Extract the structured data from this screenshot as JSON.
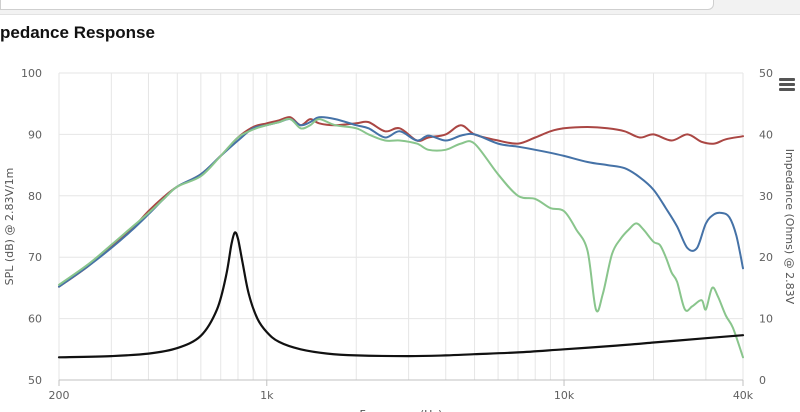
{
  "browser": {},
  "toolbar": {
    "menu_icon": "hamburger-menu-icon"
  },
  "chart_data": {
    "type": "line",
    "title": "pedance Response",
    "xlabel": "Frequency (Hz)",
    "ylabel_left": "SPL (dB) @ 2.83V/1m",
    "ylabel_right": "Impedance (Ohms) @ 2.83V",
    "x_scale": "log",
    "xlim": [
      200,
      40000
    ],
    "ylim_left": [
      50,
      100
    ],
    "ylim_right": [
      0,
      50
    ],
    "x_ticks": [
      {
        "value": 200,
        "label": "200"
      },
      {
        "value": 1000,
        "label": "1k"
      },
      {
        "value": 10000,
        "label": "10k"
      },
      {
        "value": 40000,
        "label": "40k"
      }
    ],
    "y_ticks_left": [
      "50",
      "60",
      "70",
      "80",
      "90",
      "100"
    ],
    "y_ticks_right": [
      "0",
      "10",
      "20",
      "30",
      "40",
      "50"
    ],
    "grid": true,
    "colors": {
      "grid": "#e6e6e6",
      "axis": "#c0c0c0"
    },
    "series": [
      {
        "color": "#aa4643",
        "axis": "left",
        "points": [
          [
            200,
            65.2
          ],
          [
            250,
            68.5
          ],
          [
            300,
            71.8
          ],
          [
            350,
            74.5
          ],
          [
            400,
            77.5
          ],
          [
            450,
            79.8
          ],
          [
            500,
            81.5
          ],
          [
            600,
            83.5
          ],
          [
            700,
            86.5
          ],
          [
            800,
            89.5
          ],
          [
            900,
            91.2
          ],
          [
            1000,
            91.8
          ],
          [
            1100,
            92.3
          ],
          [
            1200,
            92.8
          ],
          [
            1300,
            91.5
          ],
          [
            1400,
            92.5
          ],
          [
            1500,
            91.8
          ],
          [
            1700,
            91.5
          ],
          [
            2000,
            91.8
          ],
          [
            2200,
            92.0
          ],
          [
            2500,
            90.5
          ],
          [
            2800,
            91.0
          ],
          [
            3200,
            89.0
          ],
          [
            3500,
            89.5
          ],
          [
            4000,
            90.0
          ],
          [
            4500,
            91.5
          ],
          [
            5000,
            90.0
          ],
          [
            6000,
            89.0
          ],
          [
            7000,
            88.5
          ],
          [
            8000,
            89.5
          ],
          [
            9000,
            90.5
          ],
          [
            10000,
            91.0
          ],
          [
            12000,
            91.2
          ],
          [
            14000,
            91.0
          ],
          [
            16000,
            90.5
          ],
          [
            18000,
            89.5
          ],
          [
            20000,
            90.0
          ],
          [
            23000,
            89.0
          ],
          [
            26000,
            90.0
          ],
          [
            29000,
            88.8
          ],
          [
            32000,
            88.5
          ],
          [
            35000,
            89.2
          ],
          [
            40000,
            89.7
          ]
        ]
      },
      {
        "color": "#4572a7",
        "axis": "left",
        "points": [
          [
            200,
            65.2
          ],
          [
            250,
            68.5
          ],
          [
            300,
            71.5
          ],
          [
            350,
            74.3
          ],
          [
            400,
            77.0
          ],
          [
            450,
            79.5
          ],
          [
            500,
            81.5
          ],
          [
            600,
            83.5
          ],
          [
            700,
            86.5
          ],
          [
            800,
            89.0
          ],
          [
            900,
            91.0
          ],
          [
            1000,
            91.5
          ],
          [
            1100,
            92.0
          ],
          [
            1200,
            92.5
          ],
          [
            1300,
            91.5
          ],
          [
            1400,
            92.0
          ],
          [
            1500,
            92.8
          ],
          [
            1700,
            92.5
          ],
          [
            2000,
            91.5
          ],
          [
            2200,
            91.0
          ],
          [
            2500,
            89.5
          ],
          [
            2800,
            90.5
          ],
          [
            3200,
            89.0
          ],
          [
            3500,
            89.8
          ],
          [
            4000,
            89.0
          ],
          [
            4500,
            89.8
          ],
          [
            5000,
            90.0
          ],
          [
            6000,
            88.5
          ],
          [
            7000,
            88.0
          ],
          [
            8000,
            87.5
          ],
          [
            9000,
            87.0
          ],
          [
            10000,
            86.5
          ],
          [
            12000,
            85.5
          ],
          [
            14000,
            85.0
          ],
          [
            16000,
            84.5
          ],
          [
            18000,
            83.0
          ],
          [
            20000,
            81.0
          ],
          [
            22000,
            78.0
          ],
          [
            24000,
            75.0
          ],
          [
            26000,
            71.5
          ],
          [
            28000,
            71.5
          ],
          [
            30000,
            75.5
          ],
          [
            32000,
            77.0
          ],
          [
            34000,
            77.2
          ],
          [
            36000,
            76.5
          ],
          [
            38000,
            73.5
          ],
          [
            40000,
            68.2
          ]
        ]
      },
      {
        "color": "#89c58c",
        "axis": "left",
        "points": [
          [
            200,
            65.5
          ],
          [
            250,
            68.8
          ],
          [
            300,
            72.0
          ],
          [
            350,
            74.8
          ],
          [
            400,
            77.2
          ],
          [
            450,
            79.5
          ],
          [
            500,
            81.5
          ],
          [
            600,
            83.2
          ],
          [
            700,
            86.5
          ],
          [
            800,
            89.5
          ],
          [
            900,
            90.8
          ],
          [
            1000,
            91.5
          ],
          [
            1100,
            92.0
          ],
          [
            1200,
            92.5
          ],
          [
            1300,
            91.0
          ],
          [
            1400,
            91.5
          ],
          [
            1500,
            92.5
          ],
          [
            1700,
            91.5
          ],
          [
            2000,
            91.0
          ],
          [
            2200,
            90.0
          ],
          [
            2500,
            89.0
          ],
          [
            2800,
            89.0
          ],
          [
            3200,
            88.5
          ],
          [
            3500,
            87.5
          ],
          [
            4000,
            87.5
          ],
          [
            4500,
            88.5
          ],
          [
            5000,
            88.5
          ],
          [
            6000,
            83.5
          ],
          [
            7000,
            80.0
          ],
          [
            8000,
            79.5
          ],
          [
            9000,
            78.0
          ],
          [
            10000,
            77.5
          ],
          [
            11000,
            74.5
          ],
          [
            12000,
            71.0
          ],
          [
            12800,
            61.5
          ],
          [
            13500,
            64.0
          ],
          [
            14500,
            70.5
          ],
          [
            15500,
            73.0
          ],
          [
            16500,
            74.5
          ],
          [
            17500,
            75.5
          ],
          [
            18500,
            74.5
          ],
          [
            20000,
            72.5
          ],
          [
            21000,
            72.0
          ],
          [
            22000,
            70.0
          ],
          [
            23000,
            67.5
          ],
          [
            24000,
            66.0
          ],
          [
            25500,
            61.5
          ],
          [
            27000,
            62.0
          ],
          [
            29000,
            63.0
          ],
          [
            30000,
            61.5
          ],
          [
            31500,
            65.0
          ],
          [
            33000,
            63.5
          ],
          [
            35000,
            60.5
          ],
          [
            37000,
            58.5
          ],
          [
            40000,
            53.7
          ]
        ]
      },
      {
        "color": "#111111",
        "axis": "right",
        "points": [
          [
            200,
            3.7
          ],
          [
            300,
            3.9
          ],
          [
            400,
            4.3
          ],
          [
            500,
            5.2
          ],
          [
            600,
            7.2
          ],
          [
            680,
            11.5
          ],
          [
            730,
            17.0
          ],
          [
            760,
            22.0
          ],
          [
            780,
            24.0
          ],
          [
            800,
            23.0
          ],
          [
            830,
            19.0
          ],
          [
            870,
            14.0
          ],
          [
            930,
            10.0
          ],
          [
            1000,
            7.8
          ],
          [
            1100,
            6.2
          ],
          [
            1300,
            5.0
          ],
          [
            1600,
            4.3
          ],
          [
            2000,
            4.0
          ],
          [
            3000,
            3.9
          ],
          [
            4000,
            4.0
          ],
          [
            5000,
            4.2
          ],
          [
            7000,
            4.5
          ],
          [
            10000,
            5.0
          ],
          [
            15000,
            5.6
          ],
          [
            20000,
            6.1
          ],
          [
            30000,
            6.8
          ],
          [
            40000,
            7.3
          ]
        ]
      }
    ]
  }
}
